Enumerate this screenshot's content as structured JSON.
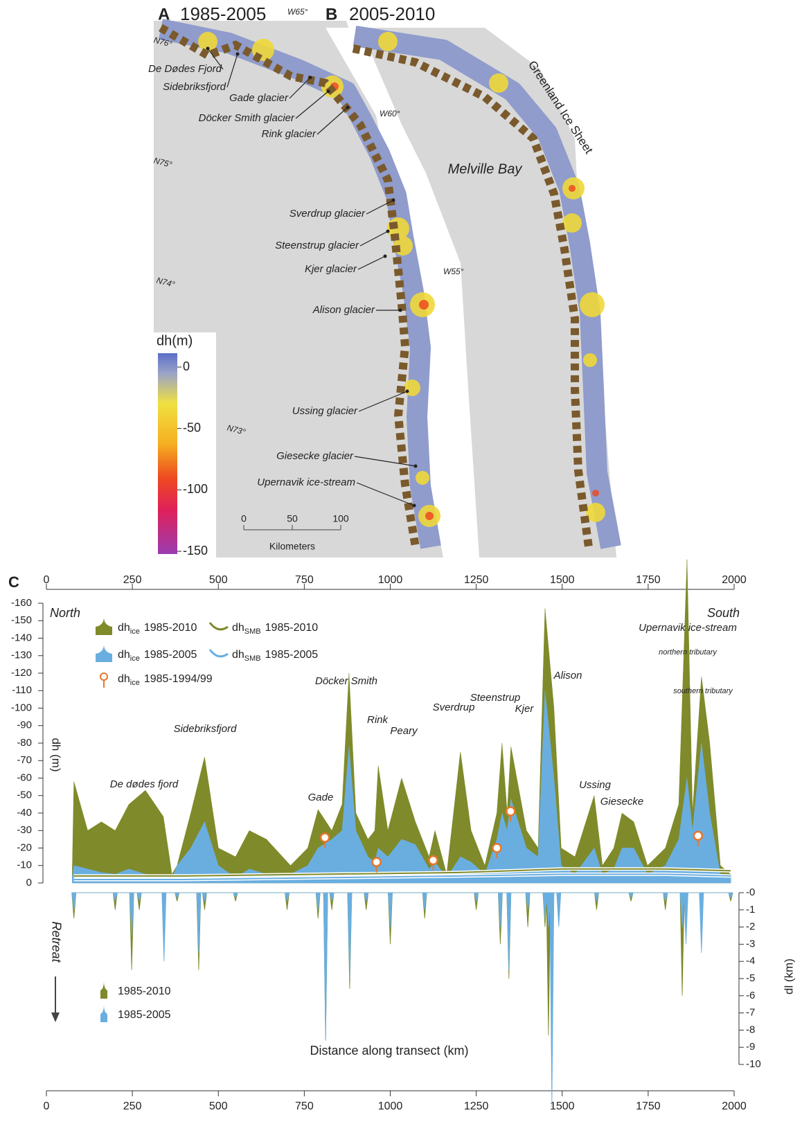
{
  "map": {
    "panels": [
      {
        "letter": "A",
        "period": "1985-2005"
      },
      {
        "letter": "B",
        "period": "2005-2010"
      }
    ],
    "graticule": [
      "W65°",
      "N76°",
      "W60°",
      "N75°",
      "W55°",
      "N74°",
      "N73°"
    ],
    "places": [
      "Melville Bay",
      "Greenland Ice Sheet"
    ],
    "glaciers": [
      "De Dødes Fjord",
      "Sidebriksfjord",
      "Gade glacier",
      "Döcker Smith glacier",
      "Rink glacier",
      "Sverdrup glacier",
      "Steenstrup glacier",
      "Kjer glacier",
      "Alison glacier",
      "Ussing glacier",
      "Giesecke glacier",
      "Upernavik ice-stream"
    ],
    "colorbar": {
      "title": "dh(m)",
      "ticks": [
        0,
        -50,
        -100,
        -150
      ]
    },
    "scalebar": {
      "ticks": [
        0,
        50,
        100
      ],
      "unit": "Kilometers"
    }
  },
  "chart_data": {
    "type": "area",
    "panel": "C",
    "ylabel": "dh (m)",
    "y2label": "dl (km)",
    "xlabel": "Distance along transect (km)",
    "north": "North",
    "south": "South",
    "retreat": "Retreat",
    "xlim": [
      0,
      2000
    ],
    "xticks": [
      0,
      250,
      500,
      750,
      1000,
      1250,
      1500,
      1750,
      2000
    ],
    "ylim": [
      0,
      -160
    ],
    "yticks": [
      0,
      -10,
      -20,
      -30,
      -40,
      -50,
      -60,
      -70,
      -80,
      -90,
      -100,
      -110,
      -120,
      -130,
      -140,
      -150,
      -160
    ],
    "y2lim": [
      0,
      -10
    ],
    "y2ticks": [
      {
        "value": 0,
        "label": "-0"
      },
      -1,
      -2,
      -3,
      -4,
      -5,
      -6,
      -7,
      -8,
      -9,
      -10
    ],
    "grid": false,
    "annotations": [
      "De dødes fjord",
      "Sidebriksfjord",
      "Gade",
      "Döcker Smith",
      "Rink",
      "Peary",
      "Sverdrup",
      "Steenstrup",
      "Kjer",
      "Alison",
      "Ussing",
      "Giesecke",
      "Upernavik ice-stream",
      "northern tributary",
      "southern tributary"
    ],
    "series": [
      {
        "name": "dh",
        "subscript": "ice",
        "period": "1985-2010",
        "style": "area",
        "color": "#7f8a2a",
        "x": [
          75,
          80,
          120,
          160,
          200,
          240,
          288,
          340,
          365,
          380,
          420,
          460,
          500,
          550,
          590,
          640,
          710,
          760,
          790,
          830,
          860,
          880,
          900,
          935,
          955,
          965,
          993,
          1033,
          1073,
          1113,
          1130,
          1164,
          1204,
          1235,
          1275,
          1310,
          1325,
          1340,
          1351,
          1396,
          1430,
          1450,
          1476,
          1497,
          1537,
          1593,
          1617,
          1650,
          1674,
          1708,
          1748,
          1800,
          1839,
          1863,
          1879,
          1905,
          1929,
          1960,
          1990
        ],
        "values": [
          -5,
          -58,
          -30,
          -35,
          -30,
          -45,
          -53,
          -38,
          -5,
          -10,
          -40,
          -72,
          -20,
          -15,
          -30,
          -25,
          -10,
          -20,
          -42,
          -30,
          -45,
          -120,
          -40,
          -25,
          -30,
          -67,
          -30,
          -60,
          -35,
          -15,
          -30,
          -5,
          -75,
          -30,
          -10,
          -40,
          -80,
          -40,
          -78,
          -30,
          -20,
          -157,
          -100,
          -20,
          -15,
          -50,
          -10,
          -20,
          -40,
          -35,
          -10,
          -20,
          -45,
          -185,
          -40,
          -118,
          -80,
          -10,
          -5
        ]
      },
      {
        "name": "dh",
        "subscript": "ice",
        "period": "1985-2005",
        "style": "area",
        "color": "#6aaee0",
        "x": [
          75,
          80,
          120,
          160,
          200,
          240,
          288,
          340,
          365,
          380,
          420,
          460,
          500,
          550,
          590,
          640,
          710,
          760,
          790,
          830,
          860,
          880,
          900,
          935,
          955,
          965,
          993,
          1033,
          1073,
          1113,
          1130,
          1164,
          1204,
          1235,
          1275,
          1310,
          1325,
          1340,
          1351,
          1396,
          1430,
          1450,
          1476,
          1497,
          1537,
          1593,
          1617,
          1650,
          1674,
          1708,
          1748,
          1800,
          1839,
          1863,
          1879,
          1905,
          1929,
          1960,
          1990
        ],
        "values": [
          -3,
          -10,
          -8,
          -6,
          -5,
          -8,
          -5,
          -4,
          -2,
          -10,
          -20,
          -35,
          -10,
          -3,
          -8,
          -5,
          -5,
          -10,
          -20,
          -25,
          -30,
          -78,
          -30,
          -15,
          -12,
          -20,
          -15,
          -25,
          -22,
          -8,
          -12,
          -3,
          -15,
          -12,
          -5,
          -25,
          -40,
          -30,
          -48,
          -20,
          -15,
          -110,
          -60,
          -10,
          -5,
          -20,
          -5,
          -8,
          -20,
          -20,
          -5,
          -10,
          -25,
          -60,
          -30,
          -80,
          -40,
          -5,
          -3
        ]
      },
      {
        "name": "dh",
        "subscript": "SMB",
        "period": "1985-2010",
        "style": "line",
        "color": "#7f8a2a",
        "x": [
          80,
          400,
          800,
          1200,
          1500,
          1800,
          1990
        ],
        "values": [
          -4,
          -4,
          -5,
          -6,
          -8,
          -8,
          -7
        ]
      },
      {
        "name": "dh",
        "subscript": "SMB",
        "period": "1985-2005",
        "style": "line",
        "color": "#6aaee0",
        "x": [
          80,
          400,
          800,
          1200,
          1500,
          1800,
          1990
        ],
        "values": [
          -2,
          -2,
          -3,
          -4,
          -5,
          -5,
          -4
        ]
      },
      {
        "name": "dh",
        "subscript": "ice",
        "period": "1985-1994/99",
        "style": "marker",
        "color": "#e8772a",
        "x": [
          810,
          960,
          1125,
          1310,
          1350,
          1895
        ],
        "values": [
          -26,
          -12,
          -13,
          -20,
          -41,
          -27
        ]
      },
      {
        "name": "1985-2010",
        "style": "retreat",
        "axis": "y2",
        "color": "#7f8a2a",
        "x": [
          80,
          200,
          248,
          270,
          342,
          380,
          443,
          460,
          550,
          700,
          790,
          812,
          830,
          882,
          930,
          1000,
          1100,
          1250,
          1320,
          1345,
          1400,
          1450,
          1460,
          1470,
          1490,
          1600,
          1700,
          1800,
          1849,
          1860,
          1905,
          1990
        ],
        "values": [
          -1.5,
          -1,
          -4.5,
          -1,
          -1,
          -0.5,
          -4.5,
          -1,
          -0.5,
          -1,
          -1.5,
          -8.6,
          -1,
          -5.6,
          -1,
          -3,
          -1.5,
          -1,
          -3,
          -5,
          -2,
          -2,
          -8.3,
          -1,
          -1,
          -1,
          -0.5,
          -1,
          -6,
          -1.5,
          -2,
          -0.5
        ]
      },
      {
        "name": "1985-2005",
        "style": "retreat",
        "axis": "y2",
        "color": "#6aaee0",
        "x": [
          80,
          200,
          248,
          270,
          342,
          380,
          443,
          460,
          550,
          700,
          790,
          812,
          830,
          882,
          930,
          1000,
          1100,
          1250,
          1320,
          1345,
          1400,
          1450,
          1460,
          1470,
          1490,
          1600,
          1700,
          1800,
          1849,
          1860,
          1905,
          1990
        ],
        "values": [
          -1,
          -0.5,
          -2.5,
          -0.5,
          -4,
          -0.3,
          -3.5,
          -0.5,
          -0.3,
          -0.5,
          -1,
          -8.6,
          -0.5,
          -5,
          -0.5,
          -2,
          -1,
          -0.5,
          -2,
          -4.5,
          -1,
          -1.5,
          -2,
          -12.5,
          -2,
          -0.5,
          -0.3,
          -0.5,
          -2,
          -3,
          -3.5,
          -0.3
        ]
      }
    ]
  }
}
